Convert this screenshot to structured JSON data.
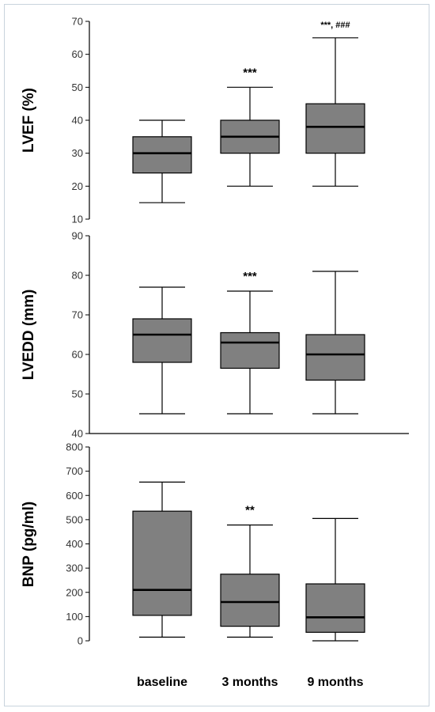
{
  "chart_data": [
    {
      "type": "boxplot",
      "ylabel": "LVEF (%)",
      "ylim": [
        10,
        70
      ],
      "yticks": [
        10,
        20,
        30,
        40,
        50,
        60,
        70
      ],
      "categories": [
        "baseline",
        "3 months",
        "9 months"
      ],
      "boxes": [
        {
          "min": 15,
          "q1": 24,
          "median": 30,
          "q3": 35,
          "max": 40
        },
        {
          "min": 20,
          "q1": 30,
          "median": 35,
          "q3": 40,
          "max": 50
        },
        {
          "min": 20,
          "q1": 30,
          "median": 38,
          "q3": 45,
          "max": 65
        }
      ],
      "annotations": [
        "",
        "***",
        "***, ###"
      ]
    },
    {
      "type": "boxplot",
      "ylabel": "LVEDD (mm)",
      "ylim": [
        40,
        90
      ],
      "yticks": [
        40,
        50,
        60,
        70,
        80,
        90
      ],
      "categories": [
        "baseline",
        "3 months",
        "9 months"
      ],
      "boxes": [
        {
          "min": 45,
          "q1": 58,
          "median": 65,
          "q3": 69,
          "max": 77
        },
        {
          "min": 45,
          "q1": 56.5,
          "median": 63,
          "q3": 65.5,
          "max": 76
        },
        {
          "min": 45,
          "q1": 53.5,
          "median": 60,
          "q3": 65,
          "max": 81
        }
      ],
      "annotations": [
        "",
        "***",
        ""
      ]
    },
    {
      "type": "boxplot",
      "ylabel": "BNP (pg/ml)",
      "ylim": [
        0,
        800
      ],
      "yticks": [
        0,
        100,
        200,
        300,
        400,
        500,
        600,
        700,
        800
      ],
      "categories": [
        "baseline",
        "3 months",
        "9 months"
      ],
      "boxes": [
        {
          "min": 15,
          "q1": 105,
          "median": 210,
          "q3": 535,
          "max": 655
        },
        {
          "min": 15,
          "q1": 60,
          "median": 160,
          "q3": 275,
          "max": 478
        },
        {
          "min": 0,
          "q1": 35,
          "median": 97,
          "q3": 235,
          "max": 505
        }
      ],
      "annotations": [
        "",
        "**",
        ""
      ]
    }
  ],
  "x_labels": [
    "baseline",
    "3 months",
    "9 months"
  ],
  "colors": {
    "box_fill": "#808080",
    "stroke": "#000000",
    "frame_border": "#c9d3dd"
  }
}
